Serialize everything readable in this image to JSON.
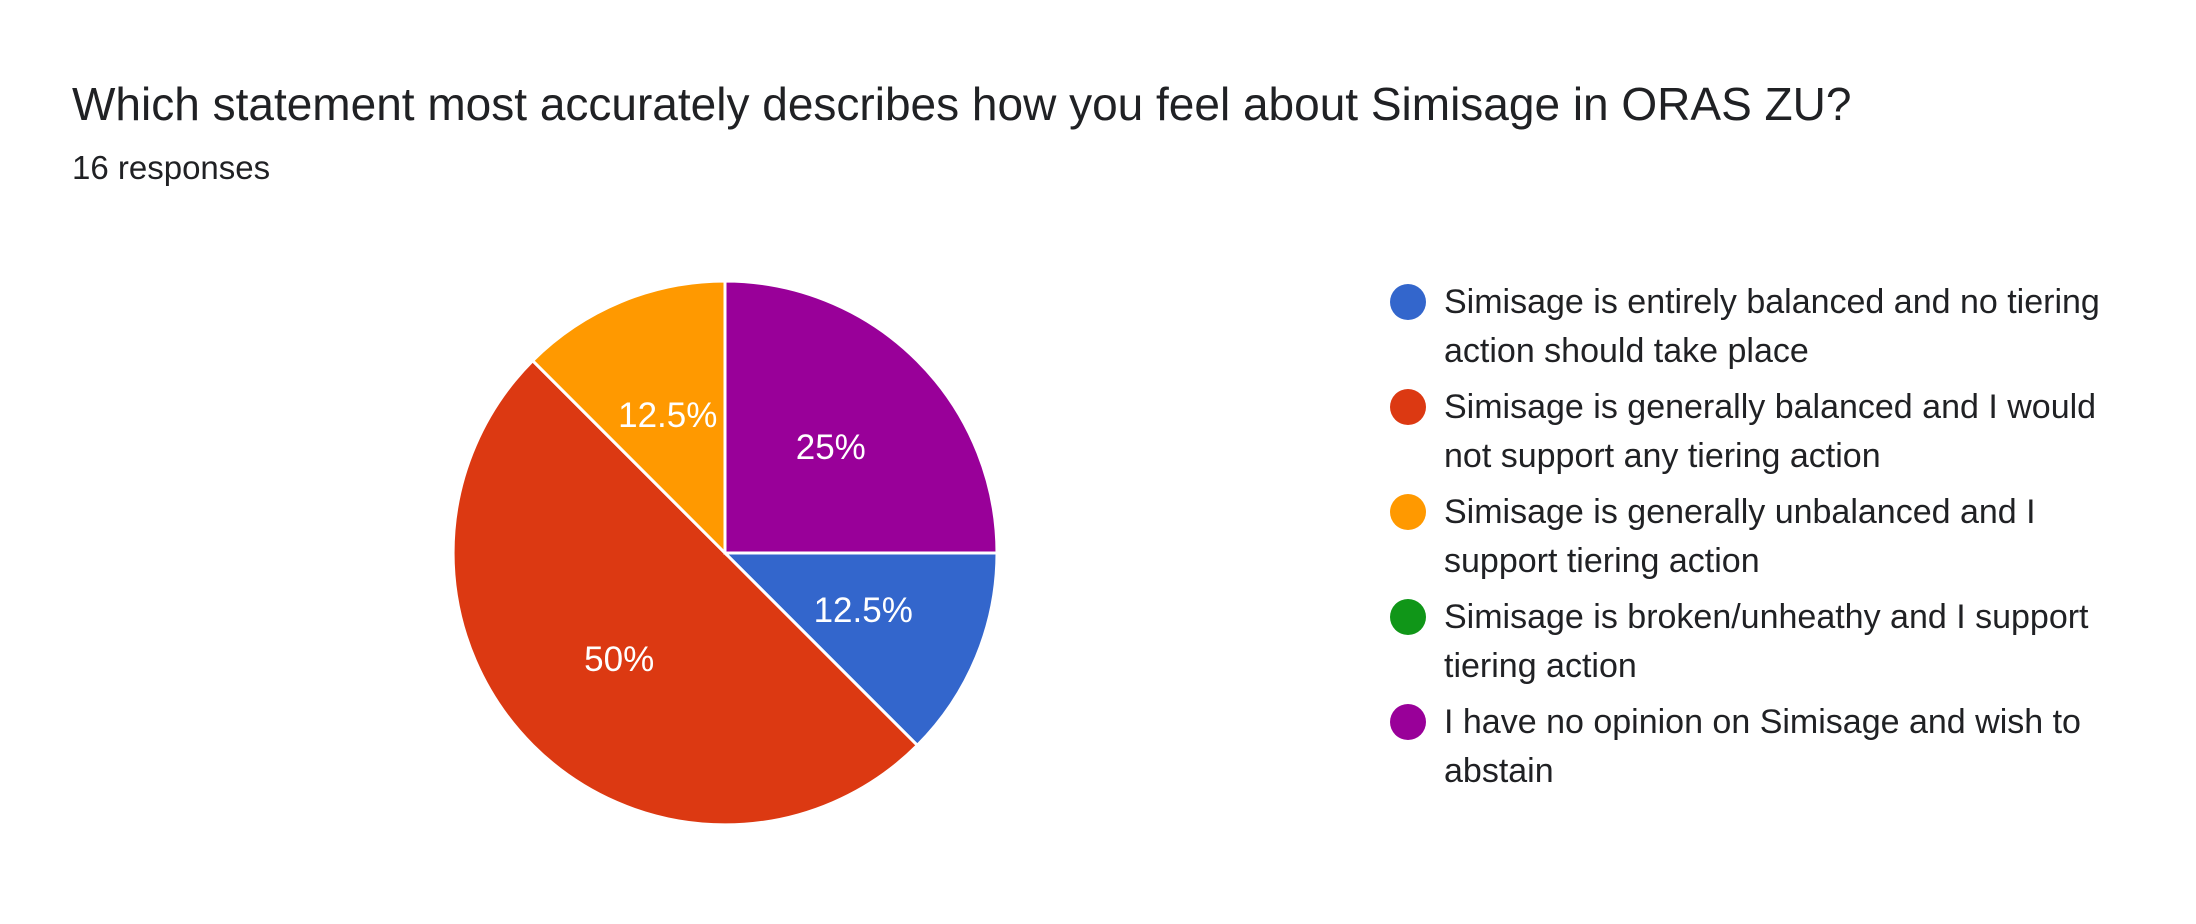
{
  "header": {
    "title": "Which statement most accurately describes how you feel about Simisage in ORAS ZU?",
    "responses": "16 responses"
  },
  "chart_data": {
    "type": "pie",
    "title": "Which statement most accurately describes how you feel about Simisage in ORAS ZU?",
    "subtitle": "16 responses",
    "legend_position": "right",
    "slices": [
      {
        "label": "Simisage is entirely balanced and no tiering action should take place",
        "value": 12.5,
        "display": "12.5%",
        "color": "#3366cc"
      },
      {
        "label": "Simisage is generally balanced and I would not support any tiering action",
        "value": 50,
        "display": "50%",
        "color": "#dc3912"
      },
      {
        "label": "Simisage is generally unbalanced and I support tiering action",
        "value": 12.5,
        "display": "12.5%",
        "color": "#ff9900"
      },
      {
        "label": "Simisage is broken/unheathy and I support tiering action",
        "value": 0,
        "display": "",
        "color": "#109618"
      },
      {
        "label": "I have no opinion on Simisage and wish to abstain",
        "value": 25,
        "display": "25%",
        "color": "#990099"
      }
    ]
  }
}
